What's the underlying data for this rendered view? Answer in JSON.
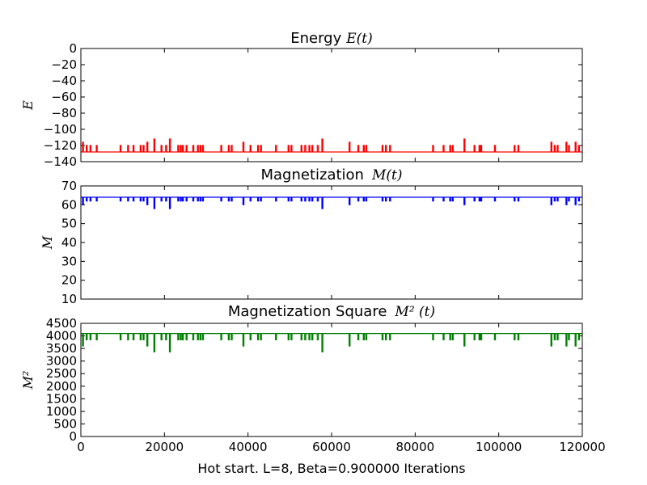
{
  "xlabel": "Hot start. L=8, Beta=0.900000 Iterations",
  "x_ticks": [
    0,
    20000,
    40000,
    60000,
    80000,
    100000,
    120000
  ],
  "chart_data": [
    {
      "type": "line",
      "title_text": "Energy",
      "title_math": "E(t)",
      "ylabel": "E",
      "xlim": [
        0,
        120000
      ],
      "ylim": [
        -140,
        0
      ],
      "y_ticks": [
        0,
        -20,
        -40,
        -60,
        -80,
        -100,
        -120,
        -140
      ],
      "color": "#ff0000",
      "baseline": -128,
      "spikes": [
        {
          "x": 500,
          "y": -116
        },
        {
          "x": 1400,
          "y": -120
        },
        {
          "x": 2300,
          "y": -120
        },
        {
          "x": 3800,
          "y": -120
        },
        {
          "x": 9500,
          "y": -120
        },
        {
          "x": 11300,
          "y": -120
        },
        {
          "x": 12600,
          "y": -120
        },
        {
          "x": 14300,
          "y": -120
        },
        {
          "x": 15000,
          "y": -120
        },
        {
          "x": 15900,
          "y": -116
        },
        {
          "x": 17600,
          "y": -112
        },
        {
          "x": 19300,
          "y": -120
        },
        {
          "x": 20400,
          "y": -120
        },
        {
          "x": 21300,
          "y": -112
        },
        {
          "x": 23300,
          "y": -120
        },
        {
          "x": 23900,
          "y": -120
        },
        {
          "x": 24400,
          "y": -120
        },
        {
          "x": 25300,
          "y": -120
        },
        {
          "x": 26900,
          "y": -120
        },
        {
          "x": 28000,
          "y": -120
        },
        {
          "x": 28600,
          "y": -120
        },
        {
          "x": 29200,
          "y": -120
        },
        {
          "x": 33600,
          "y": -120
        },
        {
          "x": 35400,
          "y": -120
        },
        {
          "x": 36100,
          "y": -120
        },
        {
          "x": 38900,
          "y": -116
        },
        {
          "x": 40600,
          "y": -120
        },
        {
          "x": 42400,
          "y": -120
        },
        {
          "x": 43100,
          "y": -120
        },
        {
          "x": 46700,
          "y": -120
        },
        {
          "x": 49700,
          "y": -120
        },
        {
          "x": 50400,
          "y": -120
        },
        {
          "x": 52800,
          "y": -120
        },
        {
          "x": 53700,
          "y": -120
        },
        {
          "x": 54700,
          "y": -120
        },
        {
          "x": 55400,
          "y": -120
        },
        {
          "x": 56700,
          "y": -120
        },
        {
          "x": 57800,
          "y": -112
        },
        {
          "x": 64300,
          "y": -116
        },
        {
          "x": 66400,
          "y": -120
        },
        {
          "x": 67700,
          "y": -120
        },
        {
          "x": 68300,
          "y": -120
        },
        {
          "x": 72200,
          "y": -120
        },
        {
          "x": 73000,
          "y": -120
        },
        {
          "x": 74000,
          "y": -120
        },
        {
          "x": 84300,
          "y": -120
        },
        {
          "x": 86800,
          "y": -120
        },
        {
          "x": 88400,
          "y": -120
        },
        {
          "x": 89000,
          "y": -120
        },
        {
          "x": 91800,
          "y": -112
        },
        {
          "x": 94200,
          "y": -120
        },
        {
          "x": 95400,
          "y": -120
        },
        {
          "x": 95800,
          "y": -120
        },
        {
          "x": 99100,
          "y": -120
        },
        {
          "x": 103800,
          "y": -120
        },
        {
          "x": 104700,
          "y": -120
        },
        {
          "x": 112600,
          "y": -116
        },
        {
          "x": 113400,
          "y": -120
        },
        {
          "x": 114100,
          "y": -120
        },
        {
          "x": 116200,
          "y": -116
        },
        {
          "x": 116800,
          "y": -120
        },
        {
          "x": 118400,
          "y": -116
        },
        {
          "x": 119200,
          "y": -120
        }
      ]
    },
    {
      "type": "line",
      "title_text": "Magnetization",
      "title_math": "M(t)",
      "ylabel": "M",
      "xlim": [
        0,
        120000
      ],
      "ylim": [
        10,
        70
      ],
      "y_ticks": [
        70,
        60,
        50,
        40,
        30,
        20,
        10
      ],
      "color": "#0000ff",
      "baseline": 64,
      "spikes": [
        {
          "x": 500,
          "y": 60
        },
        {
          "x": 1400,
          "y": 62
        },
        {
          "x": 2300,
          "y": 62
        },
        {
          "x": 3800,
          "y": 62
        },
        {
          "x": 9500,
          "y": 62
        },
        {
          "x": 11300,
          "y": 62
        },
        {
          "x": 12600,
          "y": 62
        },
        {
          "x": 14300,
          "y": 62
        },
        {
          "x": 15000,
          "y": 62
        },
        {
          "x": 15900,
          "y": 60
        },
        {
          "x": 17600,
          "y": 58
        },
        {
          "x": 19300,
          "y": 62
        },
        {
          "x": 20400,
          "y": 62
        },
        {
          "x": 21300,
          "y": 58
        },
        {
          "x": 23300,
          "y": 62
        },
        {
          "x": 23900,
          "y": 62
        },
        {
          "x": 24400,
          "y": 62
        },
        {
          "x": 25300,
          "y": 62
        },
        {
          "x": 26900,
          "y": 62
        },
        {
          "x": 28000,
          "y": 62
        },
        {
          "x": 28600,
          "y": 62
        },
        {
          "x": 29200,
          "y": 62
        },
        {
          "x": 33600,
          "y": 62
        },
        {
          "x": 35400,
          "y": 62
        },
        {
          "x": 36100,
          "y": 62
        },
        {
          "x": 38900,
          "y": 60
        },
        {
          "x": 40600,
          "y": 62
        },
        {
          "x": 42400,
          "y": 62
        },
        {
          "x": 43100,
          "y": 62
        },
        {
          "x": 46700,
          "y": 62
        },
        {
          "x": 49700,
          "y": 62
        },
        {
          "x": 50400,
          "y": 62
        },
        {
          "x": 52800,
          "y": 62
        },
        {
          "x": 53700,
          "y": 62
        },
        {
          "x": 54700,
          "y": 62
        },
        {
          "x": 55400,
          "y": 62
        },
        {
          "x": 56700,
          "y": 62
        },
        {
          "x": 57800,
          "y": 58
        },
        {
          "x": 64300,
          "y": 60
        },
        {
          "x": 66400,
          "y": 62
        },
        {
          "x": 67700,
          "y": 62
        },
        {
          "x": 68300,
          "y": 62
        },
        {
          "x": 72200,
          "y": 62
        },
        {
          "x": 73000,
          "y": 62
        },
        {
          "x": 74000,
          "y": 62
        },
        {
          "x": 84300,
          "y": 62
        },
        {
          "x": 86800,
          "y": 62
        },
        {
          "x": 88400,
          "y": 62
        },
        {
          "x": 89000,
          "y": 62
        },
        {
          "x": 91800,
          "y": 60
        },
        {
          "x": 94200,
          "y": 62
        },
        {
          "x": 95400,
          "y": 62
        },
        {
          "x": 95800,
          "y": 62
        },
        {
          "x": 99100,
          "y": 62
        },
        {
          "x": 103800,
          "y": 62
        },
        {
          "x": 104700,
          "y": 62
        },
        {
          "x": 112600,
          "y": 60
        },
        {
          "x": 113400,
          "y": 62
        },
        {
          "x": 114100,
          "y": 62
        },
        {
          "x": 116200,
          "y": 60
        },
        {
          "x": 116800,
          "y": 62
        },
        {
          "x": 118400,
          "y": 60
        },
        {
          "x": 119200,
          "y": 62
        }
      ]
    },
    {
      "type": "line",
      "title_text": "Magnetization Square",
      "title_math": "M² (t)",
      "ylabel": "M²",
      "xlim": [
        0,
        120000
      ],
      "ylim": [
        0,
        4500
      ],
      "y_ticks": [
        4500,
        4000,
        3500,
        3000,
        2500,
        2000,
        1500,
        1000,
        500,
        0
      ],
      "color": "#008000",
      "baseline": 4096,
      "spikes": [
        {
          "x": 500,
          "y": 3600
        },
        {
          "x": 1400,
          "y": 3844
        },
        {
          "x": 2300,
          "y": 3844
        },
        {
          "x": 3800,
          "y": 3844
        },
        {
          "x": 9500,
          "y": 3844
        },
        {
          "x": 11300,
          "y": 3844
        },
        {
          "x": 12600,
          "y": 3844
        },
        {
          "x": 14300,
          "y": 3844
        },
        {
          "x": 15000,
          "y": 3844
        },
        {
          "x": 15900,
          "y": 3600
        },
        {
          "x": 17600,
          "y": 3364
        },
        {
          "x": 19300,
          "y": 3844
        },
        {
          "x": 20400,
          "y": 3844
        },
        {
          "x": 21300,
          "y": 3364
        },
        {
          "x": 23300,
          "y": 3844
        },
        {
          "x": 23900,
          "y": 3844
        },
        {
          "x": 24400,
          "y": 3844
        },
        {
          "x": 25300,
          "y": 3844
        },
        {
          "x": 26900,
          "y": 3844
        },
        {
          "x": 28000,
          "y": 3844
        },
        {
          "x": 28600,
          "y": 3844
        },
        {
          "x": 29200,
          "y": 3844
        },
        {
          "x": 33600,
          "y": 3844
        },
        {
          "x": 35400,
          "y": 3844
        },
        {
          "x": 36100,
          "y": 3844
        },
        {
          "x": 38900,
          "y": 3600
        },
        {
          "x": 40600,
          "y": 3844
        },
        {
          "x": 42400,
          "y": 3844
        },
        {
          "x": 43100,
          "y": 3844
        },
        {
          "x": 46700,
          "y": 3844
        },
        {
          "x": 49700,
          "y": 3844
        },
        {
          "x": 50400,
          "y": 3844
        },
        {
          "x": 52800,
          "y": 3844
        },
        {
          "x": 53700,
          "y": 3844
        },
        {
          "x": 54700,
          "y": 3844
        },
        {
          "x": 55400,
          "y": 3844
        },
        {
          "x": 56700,
          "y": 3844
        },
        {
          "x": 57800,
          "y": 3364
        },
        {
          "x": 64300,
          "y": 3600
        },
        {
          "x": 66400,
          "y": 3844
        },
        {
          "x": 67700,
          "y": 3844
        },
        {
          "x": 68300,
          "y": 3844
        },
        {
          "x": 72200,
          "y": 3844
        },
        {
          "x": 73000,
          "y": 3844
        },
        {
          "x": 74000,
          "y": 3844
        },
        {
          "x": 84300,
          "y": 3844
        },
        {
          "x": 86800,
          "y": 3844
        },
        {
          "x": 88400,
          "y": 3844
        },
        {
          "x": 89000,
          "y": 3844
        },
        {
          "x": 91800,
          "y": 3600
        },
        {
          "x": 94200,
          "y": 3844
        },
        {
          "x": 95400,
          "y": 3844
        },
        {
          "x": 95800,
          "y": 3844
        },
        {
          "x": 99100,
          "y": 3844
        },
        {
          "x": 103800,
          "y": 3844
        },
        {
          "x": 104700,
          "y": 3844
        },
        {
          "x": 112600,
          "y": 3600
        },
        {
          "x": 113400,
          "y": 3844
        },
        {
          "x": 114100,
          "y": 3844
        },
        {
          "x": 116200,
          "y": 3600
        },
        {
          "x": 116800,
          "y": 3844
        },
        {
          "x": 118400,
          "y": 3600
        },
        {
          "x": 119200,
          "y": 3844
        }
      ]
    }
  ]
}
